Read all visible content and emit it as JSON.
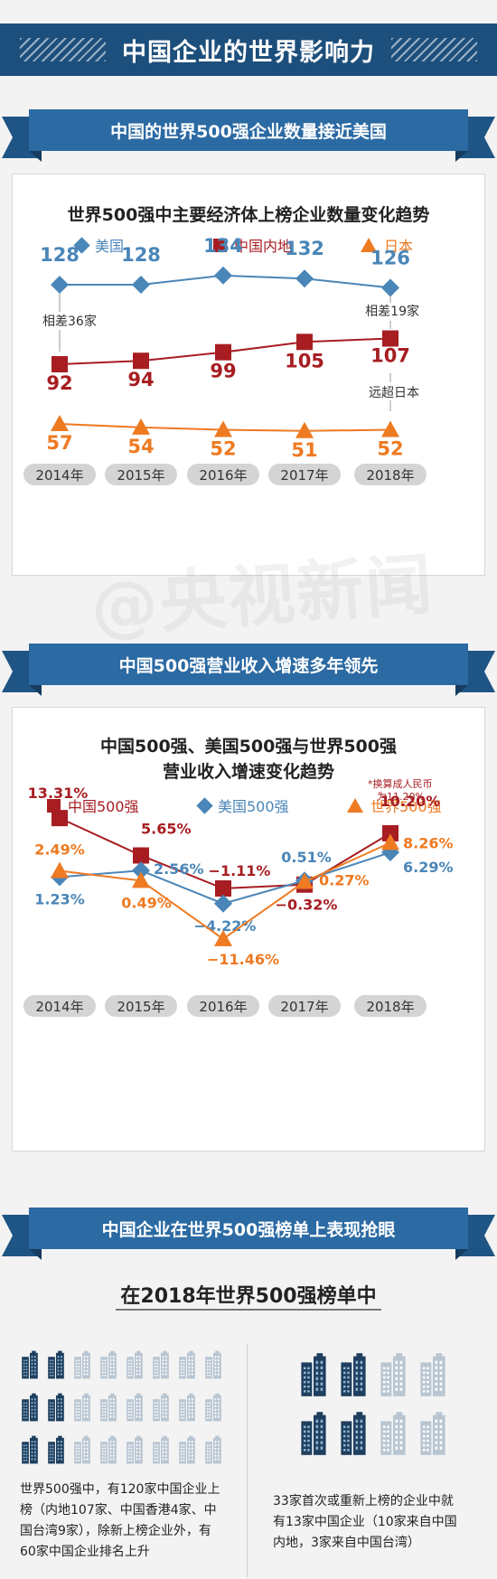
{
  "header": {
    "title": "中国企业的世界影响力"
  },
  "watermark": "@央视新闻",
  "section1": {
    "ribbon": "中国的世界500强企业数量接近美国",
    "chart_title": "世界500强中主要经济体上榜企业数量变化趋势",
    "legend": [
      "美国",
      "中国内地",
      "日本"
    ],
    "notes": {
      "gap2014": "相差36家",
      "gap2018": "相差19家",
      "vs_japan": "远超日本"
    }
  },
  "section2": {
    "ribbon": "中国500强营业收入增速多年领先",
    "chart_title_line1": "中国500强、美国500强与世界500强",
    "chart_title_line2": "营业收入增速变化趋势",
    "legend": [
      "中国500强",
      "美国500强",
      "世界500强"
    ],
    "note_line1": "*换算成人民币",
    "note_line2": "为11.20%"
  },
  "section3": {
    "ribbon": "中国企业在世界500强榜单上表现抢眼",
    "heading": "在2018年世界500强榜单中",
    "left_caption": [
      "世界500强中，有120家中国企业上",
      "榜（内地107家、中国香港4家、中",
      "国台湾9家），除新上榜企业外，有",
      "60家中国企业排名上升"
    ],
    "right_caption": [
      "33家首次或重新上榜的企业中就",
      "有13家中国企业（10家来自中国",
      "内地，3家来自中国台湾）"
    ],
    "left_buildings": {
      "highlighted_per_row": 2,
      "total_per_row": 8,
      "rows": 3
    },
    "right_buildings": {
      "highlighted_per_row": 2,
      "total_per_row": 4,
      "rows": 2
    }
  },
  "colors": {
    "usa": "#4a86b8",
    "china": "#a71d22",
    "japan": "#ee7a22",
    "navy": "#1d4f7c"
  },
  "chart_data": [
    {
      "type": "line",
      "title": "世界500强中主要经济体上榜企业数量变化趋势",
      "categories": [
        "2014年",
        "2015年",
        "2016年",
        "2017年",
        "2018年"
      ],
      "series": [
        {
          "name": "美国",
          "values": [
            128,
            128,
            134,
            132,
            126
          ],
          "labels": [
            "128",
            "128",
            "134",
            "132",
            "126"
          ]
        },
        {
          "name": "中国内地",
          "values": [
            92,
            94,
            99,
            105,
            107
          ],
          "labels": [
            "92",
            "94",
            "99",
            "105",
            "107"
          ]
        },
        {
          "name": "日本",
          "values": [
            57,
            54,
            52,
            51,
            52
          ],
          "labels": [
            "57",
            "54",
            "52",
            "51",
            "52"
          ]
        }
      ]
    },
    {
      "type": "line",
      "title": "中国500强、美国500强与世界500强营业收入增速变化趋势",
      "categories": [
        "2014年",
        "2015年",
        "2016年",
        "2017年",
        "2018年"
      ],
      "series": [
        {
          "name": "中国500强",
          "values": [
            13.31,
            5.65,
            -1.11,
            -0.32,
            10.2
          ],
          "labels": [
            "13.31%",
            "5.65%",
            "−1.11%",
            "−0.32%",
            "10.20%"
          ]
        },
        {
          "name": "美国500强",
          "values": [
            1.23,
            2.56,
            -4.22,
            0.51,
            6.29
          ],
          "labels": [
            "1.23%",
            "2.56%",
            "−4.22%",
            "0.51%",
            "6.29%"
          ]
        },
        {
          "name": "世界500强",
          "values": [
            2.49,
            0.49,
            -11.46,
            0.27,
            8.26
          ],
          "labels": [
            "2.49%",
            "0.49%",
            "−11.46%",
            "0.27%",
            "8.26%"
          ]
        }
      ]
    }
  ]
}
